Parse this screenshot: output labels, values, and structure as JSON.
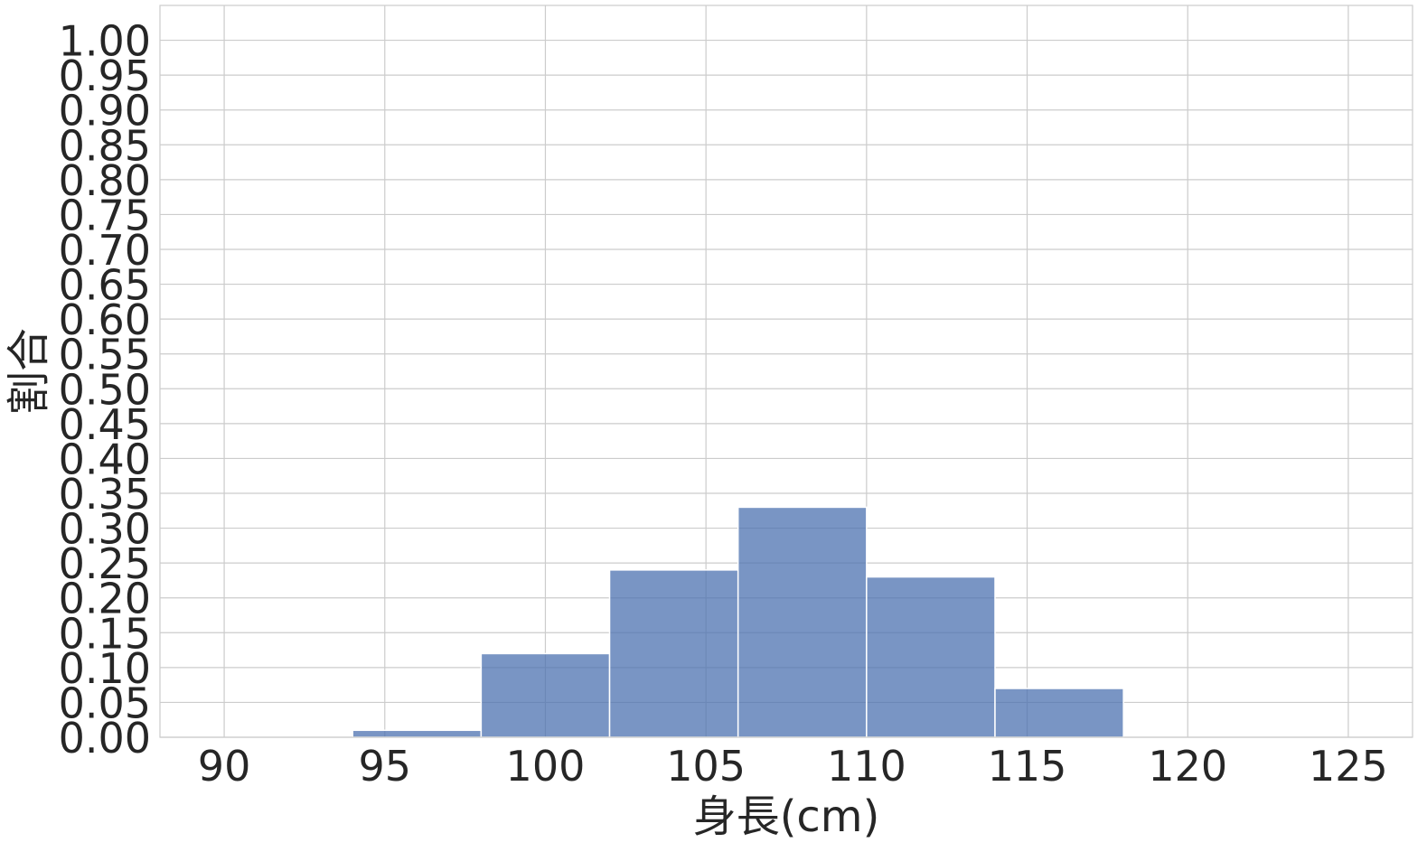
{
  "chart_data": {
    "type": "bar",
    "title": "",
    "xlabel": "身長(cm)",
    "ylabel": "割合",
    "xlim": [
      88,
      127
    ],
    "ylim": [
      0,
      1.05
    ],
    "grid": true,
    "colors": {
      "bar": "#4c72b0",
      "grid": "#cccccc",
      "text": "#262626"
    },
    "x_ticks": [
      90,
      95,
      100,
      105,
      110,
      115,
      120,
      125
    ],
    "x_tick_labels": [
      "90",
      "95",
      "100",
      "105",
      "110",
      "115",
      "120",
      "125"
    ],
    "y_ticks": [
      0,
      0.05,
      0.1,
      0.15,
      0.2,
      0.25,
      0.3,
      0.35,
      0.4,
      0.45,
      0.5,
      0.55,
      0.6,
      0.65,
      0.7,
      0.75,
      0.8,
      0.85,
      0.9,
      0.95,
      1.0
    ],
    "y_tick_labels": [
      "0.00",
      "0.05",
      "0.10",
      "0.15",
      "0.20",
      "0.25",
      "0.30",
      "0.35",
      "0.40",
      "0.45",
      "0.50",
      "0.55",
      "0.60",
      "0.65",
      "0.70",
      "0.75",
      "0.80",
      "0.85",
      "0.90",
      "0.95",
      "1.00"
    ],
    "bins": [
      {
        "x0": 94,
        "x1": 98,
        "value": 0.01
      },
      {
        "x0": 98,
        "x1": 102,
        "value": 0.12
      },
      {
        "x0": 102,
        "x1": 106,
        "value": 0.24
      },
      {
        "x0": 106,
        "x1": 110,
        "value": 0.33
      },
      {
        "x0": 110,
        "x1": 114,
        "value": 0.23
      },
      {
        "x0": 114,
        "x1": 118,
        "value": 0.07
      }
    ]
  }
}
